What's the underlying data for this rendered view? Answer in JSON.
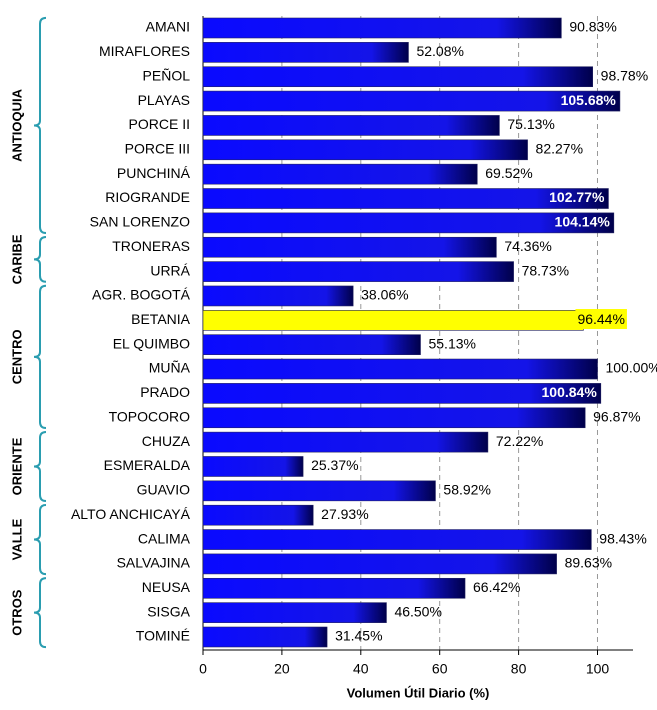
{
  "chart_data": {
    "type": "bar",
    "orientation": "horizontal",
    "x_label": "Volumen Útil Diario (%)",
    "xlim": [
      0,
      109
    ],
    "xticks": [
      0,
      20,
      40,
      60,
      80,
      100
    ],
    "grid": true,
    "color": "#0a0aff",
    "bracket_color": "#2a9db0",
    "groups": [
      {
        "name": "ANTIOQUIA",
        "categories": [
          "AMANI",
          "MIRAFLORES",
          "PEÑOL",
          "PLAYAS",
          "PORCE II",
          "PORCE III",
          "PUNCHINÁ",
          "RIOGRANDE",
          "SAN LORENZO"
        ],
        "values": [
          90.83,
          52.08,
          98.78,
          105.68,
          75.13,
          82.27,
          69.52,
          102.77,
          104.14
        ],
        "value_labels": [
          "90.83%",
          "52.08%",
          "98.78%",
          "105.68%",
          "75.13%",
          "82.27%",
          "69.52%",
          "102.77%",
          "104.14%"
        ]
      },
      {
        "name": "CARIBE",
        "categories": [
          "TRONERAS",
          "URRÁ"
        ],
        "values": [
          74.36,
          78.73
        ],
        "value_labels": [
          "74.36%",
          "78.73%"
        ]
      },
      {
        "name": "CENTRO",
        "categories": [
          "AGR. BOGOTÁ",
          "BETANIA",
          "EL QUIMBO",
          "MUÑA",
          "PRADO",
          "TOPOCORO"
        ],
        "values": [
          38.06,
          96.44,
          55.13,
          100.0,
          100.84,
          96.87
        ],
        "value_labels": [
          "38.06%",
          "96.44%",
          "55.13%",
          "100.00%",
          "100.84%",
          "96.87%"
        ],
        "colors": [
          null,
          "#ffff00",
          null,
          null,
          null,
          null
        ]
      },
      {
        "name": "ORIENTE",
        "categories": [
          "CHUZA",
          "ESMERALDA",
          "GUAVIO"
        ],
        "values": [
          72.22,
          25.37,
          58.92
        ],
        "value_labels": [
          "72.22%",
          "25.37%",
          "58.92%"
        ]
      },
      {
        "name": "VALLE",
        "categories": [
          "ALTO ANCHICAYÁ",
          "CALIMA",
          "SALVAJINA"
        ],
        "values": [
          27.93,
          98.43,
          89.63
        ],
        "value_labels": [
          "27.93%",
          "98.43%",
          "89.63%"
        ]
      },
      {
        "name": "OTROS",
        "categories": [
          "NEUSA",
          "SISGA",
          "TOMINÉ"
        ],
        "values": [
          66.42,
          46.5,
          31.45
        ],
        "value_labels": [
          "66.42%",
          "46.50%",
          "31.45%"
        ]
      }
    ]
  }
}
